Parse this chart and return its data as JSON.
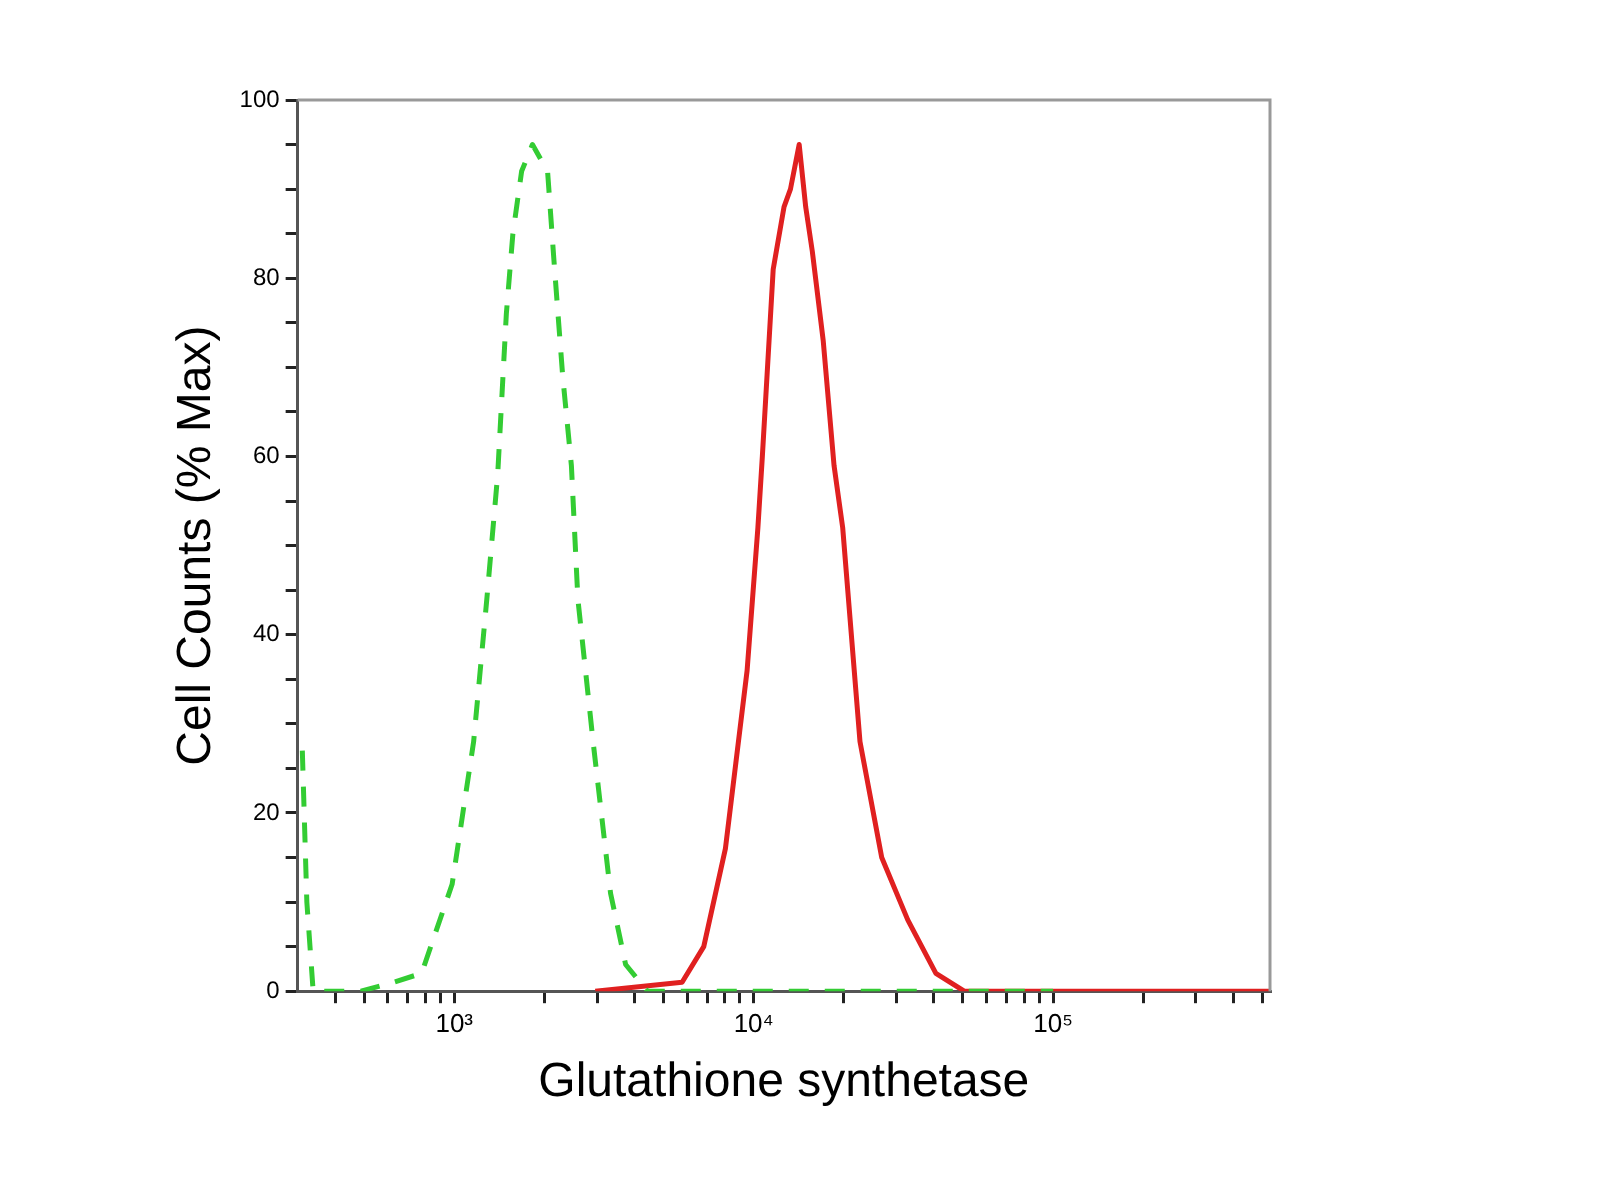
{
  "chart_data": {
    "type": "line",
    "xlabel": "Glutathione synthetase",
    "ylabel": "Cell Counts (% Max)",
    "log": "x",
    "grid": false,
    "legend": false,
    "marker": "none",
    "xlim": [
      300,
      530000
    ],
    "xticks": [
      {
        "value": 400,
        "label": null
      },
      {
        "value": 500,
        "label": null
      },
      {
        "value": 600,
        "label": null
      },
      {
        "value": 700,
        "label": null
      },
      {
        "value": 800,
        "label": null
      },
      {
        "value": 900,
        "label": null
      },
      {
        "value": 1000,
        "label": "10³"
      },
      {
        "value": 2000,
        "label": null
      },
      {
        "value": 3000,
        "label": null
      },
      {
        "value": 4000,
        "label": null
      },
      {
        "value": 5000,
        "label": null
      },
      {
        "value": 6000,
        "label": null
      },
      {
        "value": 7000,
        "label": null
      },
      {
        "value": 8000,
        "label": null
      },
      {
        "value": 9000,
        "label": null
      },
      {
        "value": 10000,
        "label": "10⁴"
      },
      {
        "value": 20000,
        "label": null
      },
      {
        "value": 30000,
        "label": null
      },
      {
        "value": 40000,
        "label": null
      },
      {
        "value": 50000,
        "label": null
      },
      {
        "value": 60000,
        "label": null
      },
      {
        "value": 70000,
        "label": null
      },
      {
        "value": 80000,
        "label": null
      },
      {
        "value": 90000,
        "label": null
      },
      {
        "value": 100000,
        "label": "10⁵"
      },
      {
        "value": 200000,
        "label": null
      },
      {
        "value": 300000,
        "label": null
      },
      {
        "value": 400000,
        "label": null
      },
      {
        "value": 500000,
        "label": null
      }
    ],
    "ylim": [
      0,
      100
    ],
    "yticks": [
      0,
      {
        "value": 5,
        "label": null
      },
      {
        "value": 10,
        "label": null
      },
      {
        "value": 15,
        "label": null
      },
      20,
      {
        "value": 25,
        "label": null
      },
      {
        "value": 30,
        "label": null
      },
      {
        "value": 35,
        "label": null
      },
      40,
      {
        "value": 45,
        "label": null
      },
      {
        "value": 50,
        "label": null
      },
      {
        "value": 55,
        "label": null
      },
      60,
      {
        "value": 65,
        "label": null
      },
      {
        "value": 70,
        "label": null
      },
      {
        "value": 75,
        "label": null
      },
      80,
      {
        "value": 85,
        "label": null
      },
      {
        "value": 90,
        "label": null
      },
      {
        "value": 95,
        "label": null
      },
      100
    ],
    "series": [
      {
        "color": "#33cc33",
        "line_style": "dashed",
        "x": [
          311,
          322,
          338,
          488,
          626,
          778,
          984,
          1161,
          1285,
          1397,
          1493,
          1570,
          1679,
          1825,
          2050,
          2153,
          2303,
          2462,
          2588,
          2909,
          3327,
          3736,
          4416,
          20000,
          100000
        ],
        "values": [
          27,
          10,
          0,
          0,
          1,
          2,
          12,
          28,
          44,
          58,
          76,
          85,
          92,
          95,
          92,
          82,
          69,
          59,
          44,
          28,
          11,
          3,
          0,
          0,
          0
        ]
      },
      {
        "color": "#e02020",
        "line_style": "solid",
        "x": [
          2958,
          5768,
          6813,
          8047,
          9509,
          10330,
          10690,
          11620,
          12630,
          13270,
          14190,
          14920,
          15700,
          17070,
          18550,
          19830,
          22650,
          26770,
          32700,
          40600,
          50500,
          100000,
          530000
        ],
        "values": [
          0,
          1,
          5,
          16,
          36,
          52,
          60,
          81,
          88,
          90,
          95,
          88,
          83,
          73,
          59,
          52,
          28,
          15,
          8,
          2,
          0,
          0,
          0
        ]
      }
    ]
  }
}
